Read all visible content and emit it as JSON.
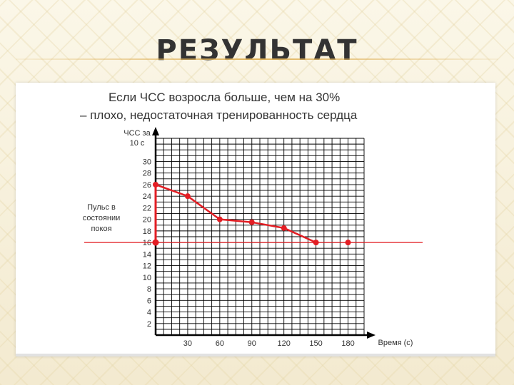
{
  "slide": {
    "title": "РЕЗУЛЬТАТ"
  },
  "chart_data": {
    "type": "line",
    "title_line1": "Если ЧСС возросла больше, чем на 30%",
    "title_line2": "– плохо, недостаточная тренированность сердца",
    "ylabel_line1": "ЧСС за",
    "ylabel_line2": "10 с",
    "xlabel": "Время (с)",
    "y_ticks": [
      "2",
      "4",
      "6",
      "8",
      "10",
      "12",
      "14",
      "16",
      "18",
      "20",
      "22",
      "24",
      "26",
      "28",
      "30"
    ],
    "x_ticks": [
      "30",
      "60",
      "90",
      "120",
      "150",
      "180"
    ],
    "ylim": [
      0,
      34
    ],
    "xlim": [
      0,
      195
    ],
    "series": [
      {
        "x": [
          0,
          30,
          60,
          90,
          120,
          150
        ],
        "y": [
          26,
          24,
          20,
          19.5,
          18.5,
          16
        ]
      }
    ],
    "rest_pulse": {
      "value": 16,
      "label_lines": [
        "Пульс в",
        "состоянии",
        "покоя"
      ],
      "end_x": 180
    },
    "grid": true,
    "colors": {
      "series": "#e31e24",
      "grid": "#000000",
      "text": "#333333"
    }
  }
}
